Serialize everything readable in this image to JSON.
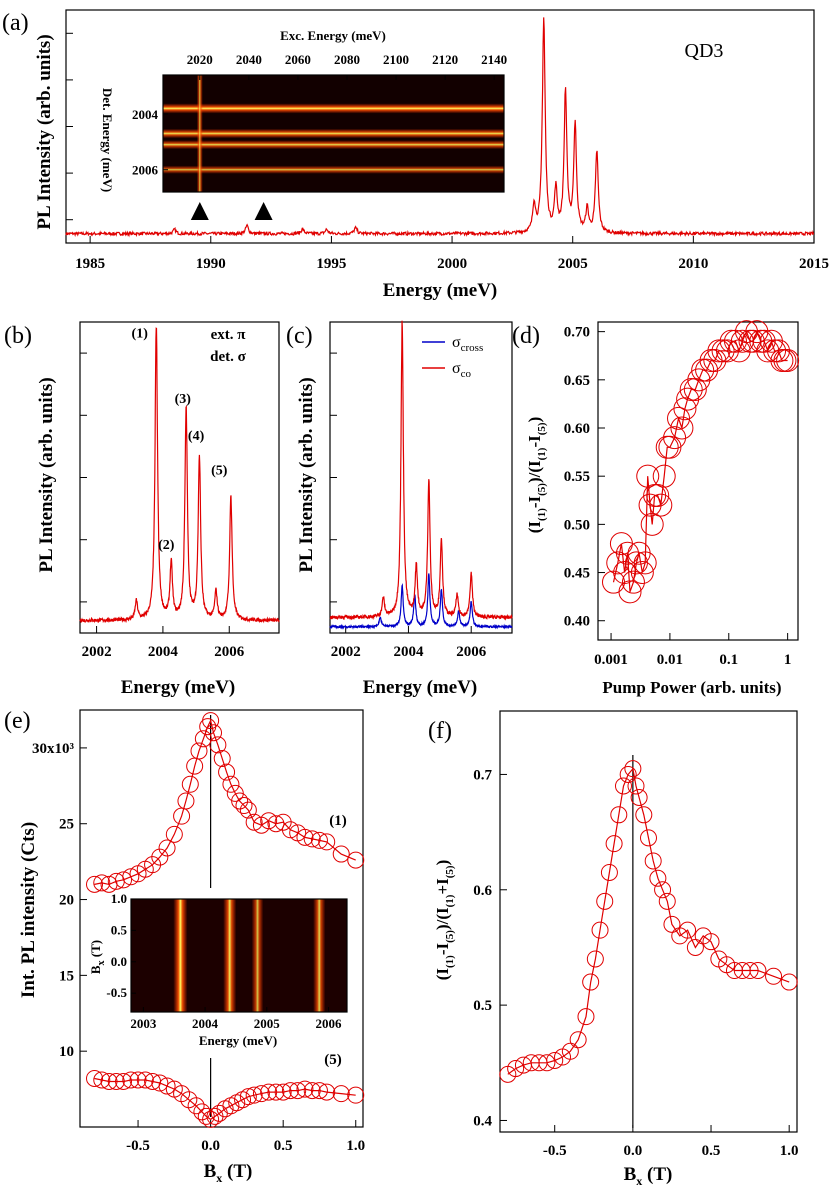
{
  "chart_data": [
    {
      "id": "a",
      "panel_label": "(a)",
      "type": "line",
      "xlabel": "Energy (meV)",
      "ylabel": "PL Intensity (arb. units)",
      "annotation": "QD3",
      "xlim": [
        1984,
        2015
      ],
      "ylim": [
        0,
        1
      ],
      "x_ticks": [
        "1985",
        "1990",
        "1995",
        "2000",
        "2005",
        "2010",
        "2015"
      ],
      "x_tick_values": [
        1985,
        1990,
        1995,
        2000,
        2005,
        2010,
        2015
      ],
      "y_tick_values": [
        0.1,
        0.3,
        0.5,
        0.7,
        0.9
      ],
      "baseline": 0.04,
      "peaks": [
        {
          "x": 1988.5,
          "h": 0.018
        },
        {
          "x": 1991.5,
          "h": 0.035
        },
        {
          "x": 1993.8,
          "h": 0.02
        },
        {
          "x": 1994.8,
          "h": 0.018
        },
        {
          "x": 1996.0,
          "h": 0.025
        },
        {
          "x": 2003.4,
          "h": 0.12
        },
        {
          "x": 2003.8,
          "h": 0.92
        },
        {
          "x": 2004.3,
          "h": 0.18
        },
        {
          "x": 2004.7,
          "h": 0.6
        },
        {
          "x": 2005.1,
          "h": 0.46
        },
        {
          "x": 2005.6,
          "h": 0.1
        },
        {
          "x": 2006.0,
          "h": 0.35
        }
      ],
      "inset": {
        "type": "heatmap",
        "xlabel": "Exc. Energy (meV)",
        "ylabel": "Det. Energy (meV)",
        "x_ticks": [
          "2020",
          "2040",
          "2060",
          "2080",
          "2100",
          "2120",
          "2140"
        ],
        "x_tick_values": [
          2020,
          2040,
          2060,
          2080,
          2100,
          2120,
          2140
        ],
        "xlim": [
          2005,
          2144
        ],
        "y_ticks": [
          "2004",
          "2006"
        ],
        "y_tick_values": [
          2004,
          2006
        ],
        "ylim": [
          2002.6,
          2006.8
        ],
        "lines": [
          {
            "det": 2003.8,
            "intensity": 1.0
          },
          {
            "det": 2004.7,
            "intensity": 0.85
          },
          {
            "det": 2005.1,
            "intensity": 0.75
          },
          {
            "det": 2006.0,
            "intensity": 0.55
          }
        ],
        "arrows_at_exc": [
          2020,
          2046
        ]
      }
    },
    {
      "id": "b",
      "panel_label": "(b)",
      "type": "line",
      "xlabel": "Energy (meV)",
      "ylabel": "PL Intensity (arb. units)",
      "xlim": [
        2001.5,
        2007.5
      ],
      "ylim": [
        0,
        1
      ],
      "x_ticks": [
        "2002",
        "2004",
        "2006"
      ],
      "x_tick_values": [
        2002,
        2004,
        2006
      ],
      "y_tick_values": [
        0.1,
        0.3,
        0.5,
        0.7,
        0.9
      ],
      "legend_text": [
        "ext. π",
        "det. σ"
      ],
      "peak_labels": [
        {
          "text": "(1)",
          "x": 2003.3,
          "y": 0.95
        },
        {
          "text": "(2)",
          "x": 2004.1,
          "y": 0.27
        },
        {
          "text": "(3)",
          "x": 2004.6,
          "y": 0.74
        },
        {
          "text": "(4)",
          "x": 2005.0,
          "y": 0.62
        },
        {
          "text": "(5)",
          "x": 2005.7,
          "y": 0.51
        }
      ],
      "peaks": [
        {
          "x": 2003.2,
          "h": 0.06
        },
        {
          "x": 2003.8,
          "h": 0.95
        },
        {
          "x": 2004.25,
          "h": 0.18
        },
        {
          "x": 2004.7,
          "h": 0.68
        },
        {
          "x": 2005.1,
          "h": 0.52
        },
        {
          "x": 2005.6,
          "h": 0.09
        },
        {
          "x": 2006.05,
          "h": 0.4
        }
      ]
    },
    {
      "id": "c",
      "panel_label": "(c)",
      "type": "line",
      "xlabel": "Energy (meV)",
      "ylabel": "PL Intensity (arb. units)",
      "xlim": [
        2001.5,
        2007.3
      ],
      "ylim": [
        0,
        1
      ],
      "x_ticks": [
        "2002",
        "2004",
        "2006"
      ],
      "x_tick_values": [
        2002,
        2004,
        2006
      ],
      "y_tick_values": [
        0.1,
        0.3,
        0.5,
        0.7,
        0.9
      ],
      "legend": [
        {
          "name": "σ",
          "sub": "cross",
          "color": "#0000c8"
        },
        {
          "name": "σ",
          "sub": "co",
          "color": "#e00000"
        }
      ],
      "series": [
        {
          "name": "σcross",
          "color": "#0000c8",
          "baseline": 0.02,
          "peaks": [
            {
              "x": 2003.1,
              "h": 0.03
            },
            {
              "x": 2003.8,
              "h": 0.13
            },
            {
              "x": 2004.2,
              "h": 0.1
            },
            {
              "x": 2004.65,
              "h": 0.17
            },
            {
              "x": 2005.05,
              "h": 0.12
            },
            {
              "x": 2005.6,
              "h": 0.05
            },
            {
              "x": 2006.0,
              "h": 0.08
            }
          ]
        },
        {
          "name": "σco",
          "color": "#e00000",
          "baseline": 0.05,
          "peaks": [
            {
              "x": 2003.2,
              "h": 0.06
            },
            {
              "x": 2003.8,
              "h": 0.95
            },
            {
              "x": 2004.25,
              "h": 0.16
            },
            {
              "x": 2004.65,
              "h": 0.44
            },
            {
              "x": 2005.05,
              "h": 0.25
            },
            {
              "x": 2005.55,
              "h": 0.07
            },
            {
              "x": 2006.0,
              "h": 0.14
            }
          ]
        }
      ]
    },
    {
      "id": "d",
      "panel_label": "(d)",
      "type": "scatter",
      "xscale": "log",
      "xlabel": "Pump Power (arb. units)",
      "ylabel": "(I(1)-I(5))/(I(1)-I(5))",
      "xlim": [
        0.0006,
        1.5
      ],
      "ylim": [
        0.38,
        0.71
      ],
      "x_ticks": [
        "0.001",
        "0.01",
        "0.1",
        "1"
      ],
      "x_tick_values": [
        0.001,
        0.01,
        0.1,
        1
      ],
      "y_ticks": [
        "0.40",
        "0.45",
        "0.50",
        "0.55",
        "0.60",
        "0.65",
        "0.70"
      ],
      "y_tick_values": [
        0.4,
        0.45,
        0.5,
        0.55,
        0.6,
        0.65,
        0.7
      ],
      "x": [
        0.0011,
        0.0013,
        0.0015,
        0.0017,
        0.0019,
        0.0021,
        0.0024,
        0.0027,
        0.003,
        0.0034,
        0.0038,
        0.0042,
        0.0046,
        0.005,
        0.0055,
        0.0062,
        0.007,
        0.008,
        0.009,
        0.01,
        0.012,
        0.014,
        0.016,
        0.018,
        0.02,
        0.023,
        0.027,
        0.031,
        0.036,
        0.042,
        0.05,
        0.058,
        0.068,
        0.08,
        0.095,
        0.11,
        0.13,
        0.15,
        0.17,
        0.2,
        0.23,
        0.26,
        0.3,
        0.35,
        0.4,
        0.46,
        0.53,
        0.6,
        0.7,
        0.8,
        0.9,
        1.0
      ],
      "y": [
        0.44,
        0.46,
        0.48,
        0.45,
        0.47,
        0.43,
        0.44,
        0.46,
        0.47,
        0.45,
        0.46,
        0.55,
        0.52,
        0.5,
        0.53,
        0.53,
        0.52,
        0.55,
        0.58,
        0.58,
        0.59,
        0.61,
        0.6,
        0.62,
        0.63,
        0.64,
        0.64,
        0.65,
        0.66,
        0.66,
        0.67,
        0.67,
        0.68,
        0.68,
        0.68,
        0.69,
        0.69,
        0.68,
        0.69,
        0.7,
        0.69,
        0.69,
        0.7,
        0.69,
        0.69,
        0.68,
        0.69,
        0.68,
        0.68,
        0.67,
        0.67,
        0.67
      ]
    },
    {
      "id": "e",
      "panel_label": "(e)",
      "type": "scatter",
      "xlabel": "Bx (T)",
      "ylabel": "Int. PL intensity (Cts)",
      "xlim": [
        -0.9,
        1.05
      ],
      "ylim": [
        5,
        32.5
      ],
      "x_ticks": [
        "-0.5",
        "0.0",
        "0.5",
        "1.0"
      ],
      "x_tick_values": [
        -0.5,
        0.0,
        0.5,
        1.0
      ],
      "y_ticks": [
        "10",
        "15",
        "20",
        "25",
        "30x10³"
      ],
      "y_tick_values": [
        10,
        15,
        20,
        25,
        30
      ],
      "series": [
        {
          "name": "(1)",
          "x": [
            -0.8,
            -0.75,
            -0.7,
            -0.65,
            -0.6,
            -0.55,
            -0.5,
            -0.45,
            -0.4,
            -0.35,
            -0.3,
            -0.25,
            -0.2,
            -0.17,
            -0.14,
            -0.11,
            -0.08,
            -0.05,
            -0.02,
            0.0,
            0.02,
            0.05,
            0.08,
            0.11,
            0.14,
            0.17,
            0.2,
            0.23,
            0.26,
            0.3,
            0.35,
            0.4,
            0.45,
            0.5,
            0.55,
            0.6,
            0.65,
            0.7,
            0.75,
            0.8,
            0.9,
            1.0
          ],
          "y": [
            21.0,
            21.1,
            21.0,
            21.2,
            21.3,
            21.5,
            21.7,
            22.0,
            22.3,
            22.8,
            23.4,
            24.3,
            25.5,
            26.5,
            27.6,
            28.8,
            29.8,
            30.6,
            31.4,
            31.8,
            31.0,
            30.2,
            29.3,
            28.4,
            27.6,
            27.0,
            26.5,
            26.2,
            25.9,
            25.1,
            24.9,
            25.2,
            25.0,
            25.1,
            24.6,
            24.4,
            24.1,
            24.0,
            23.9,
            23.8,
            23.0,
            22.6
          ]
        },
        {
          "name": "(5)",
          "x": [
            -0.8,
            -0.75,
            -0.7,
            -0.65,
            -0.6,
            -0.55,
            -0.5,
            -0.45,
            -0.4,
            -0.35,
            -0.3,
            -0.25,
            -0.2,
            -0.15,
            -0.1,
            -0.06,
            -0.03,
            0.0,
            0.03,
            0.06,
            0.1,
            0.14,
            0.18,
            0.22,
            0.26,
            0.3,
            0.35,
            0.4,
            0.45,
            0.5,
            0.55,
            0.6,
            0.65,
            0.7,
            0.75,
            0.8,
            0.9,
            1.0
          ],
          "y": [
            8.2,
            8.1,
            8.0,
            8.0,
            8.0,
            8.1,
            8.1,
            8.1,
            8.0,
            7.9,
            7.7,
            7.5,
            7.2,
            6.8,
            6.4,
            6.0,
            5.7,
            5.5,
            5.7,
            5.9,
            6.2,
            6.4,
            6.6,
            6.8,
            7.0,
            7.1,
            7.2,
            7.3,
            7.3,
            7.3,
            7.4,
            7.4,
            7.5,
            7.4,
            7.4,
            7.3,
            7.2,
            7.1
          ]
        }
      ],
      "series_labels": [
        "(1)",
        "(5)"
      ],
      "inset": {
        "type": "heatmap",
        "xlabel": "Energy (meV)",
        "ylabel": "Bx (T)",
        "x_ticks": [
          "2003",
          "2004",
          "2005",
          "2006"
        ],
        "x_tick_values": [
          2003,
          2004,
          2005,
          2006
        ],
        "xlim": [
          2002.8,
          2006.3
        ],
        "y_ticks": [
          "1.0",
          "0.5",
          "0.0",
          "-0.5"
        ],
        "y_tick_values": [
          1.0,
          0.5,
          0.0,
          -0.5
        ],
        "ylim": [
          -0.8,
          1.0
        ],
        "lines": [
          {
            "energy": 2003.6,
            "intensity": 1.0
          },
          {
            "energy": 2004.4,
            "intensity": 0.85
          },
          {
            "energy": 2004.85,
            "intensity": 0.6
          },
          {
            "energy": 2005.85,
            "intensity": 0.7
          }
        ]
      }
    },
    {
      "id": "f",
      "panel_label": "(f)",
      "type": "scatter",
      "xlabel": "Bx (T)",
      "ylabel": "(I(1)-I(5))/(I(1)+I(5))",
      "xlim": [
        -0.85,
        1.05
      ],
      "ylim": [
        0.39,
        0.755
      ],
      "x_ticks": [
        "-0.5",
        "0.0",
        "0.5",
        "1.0"
      ],
      "x_tick_values": [
        -0.5,
        0.0,
        0.5,
        1.0
      ],
      "y_ticks": [
        "0.4",
        "0.5",
        "0.6",
        "0.7"
      ],
      "y_tick_values": [
        0.4,
        0.5,
        0.6,
        0.7
      ],
      "x": [
        -0.8,
        -0.75,
        -0.7,
        -0.65,
        -0.6,
        -0.55,
        -0.5,
        -0.45,
        -0.4,
        -0.35,
        -0.3,
        -0.27,
        -0.24,
        -0.21,
        -0.18,
        -0.15,
        -0.12,
        -0.09,
        -0.06,
        -0.03,
        0.0,
        0.02,
        0.04,
        0.07,
        0.1,
        0.13,
        0.16,
        0.19,
        0.22,
        0.25,
        0.3,
        0.35,
        0.4,
        0.45,
        0.5,
        0.55,
        0.6,
        0.65,
        0.7,
        0.75,
        0.8,
        0.9,
        1.0
      ],
      "y": [
        0.44,
        0.445,
        0.448,
        0.45,
        0.45,
        0.45,
        0.452,
        0.455,
        0.46,
        0.47,
        0.49,
        0.52,
        0.54,
        0.565,
        0.59,
        0.615,
        0.64,
        0.665,
        0.69,
        0.7,
        0.705,
        0.69,
        0.68,
        0.665,
        0.645,
        0.625,
        0.61,
        0.6,
        0.59,
        0.57,
        0.56,
        0.565,
        0.55,
        0.56,
        0.555,
        0.54,
        0.535,
        0.53,
        0.53,
        0.53,
        0.53,
        0.525,
        0.52
      ]
    }
  ]
}
